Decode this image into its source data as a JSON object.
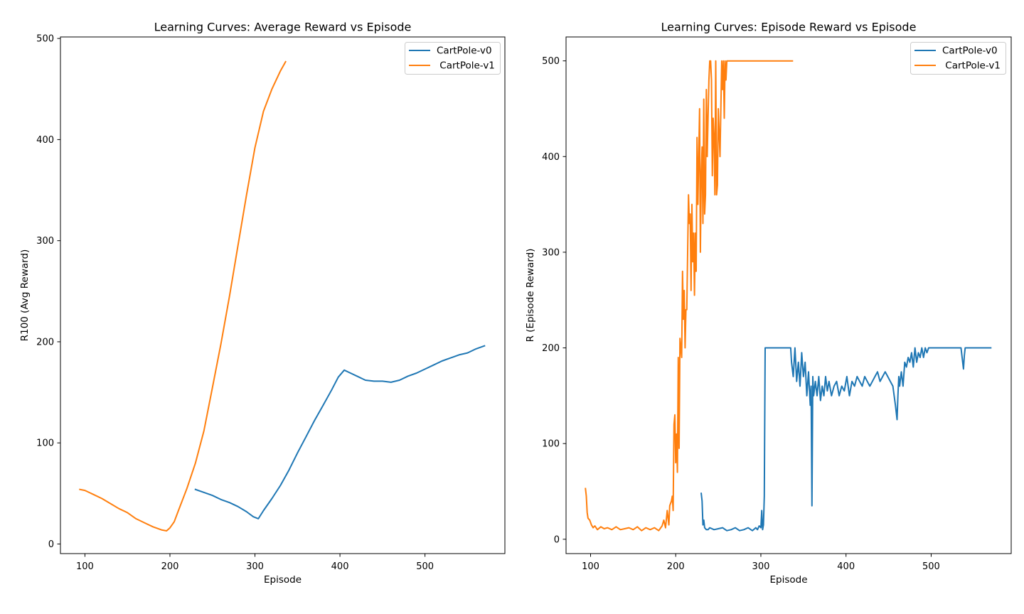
{
  "colors": {
    "v0": "#1f77b4",
    "v1": "#ff7f0e",
    "frame": "#000000",
    "legend_border": "#cccccc"
  },
  "chart_data": [
    {
      "type": "line",
      "title": "Learning Curves: Average Reward vs Episode",
      "xlabel": "Episode",
      "ylabel": "R100 (Avg Reward)",
      "xlim": [
        71.2,
        594
      ],
      "ylim": [
        -9.5,
        501.5
      ],
      "xticks": [
        "100",
        "200",
        "300",
        "400",
        "500"
      ],
      "yticks": [
        "0",
        "100",
        "200",
        "300",
        "400",
        "500"
      ],
      "grid": false,
      "legend": "upper right",
      "series": [
        {
          "name": "CartPole-v0",
          "color": "#1f77b4",
          "x": [
            230,
            240,
            250,
            260,
            270,
            280,
            290,
            298,
            304,
            310,
            320,
            330,
            340,
            350,
            360,
            370,
            380,
            390,
            398,
            405,
            410,
            420,
            430,
            440,
            450,
            460,
            470,
            480,
            490,
            500,
            510,
            520,
            530,
            540,
            550,
            560,
            570
          ],
          "y": [
            54,
            51,
            48,
            44,
            41,
            37,
            32,
            27,
            25,
            33,
            45,
            58,
            73,
            90,
            106,
            122,
            137,
            152,
            165,
            172,
            170,
            166,
            162,
            161,
            161,
            160,
            162,
            166,
            169,
            173,
            177,
            181,
            184,
            187,
            189,
            193,
            196
          ]
        },
        {
          "name": " CartPole-v1",
          "color": "#ff7f0e",
          "x": [
            94,
            100,
            110,
            120,
            130,
            140,
            150,
            160,
            170,
            180,
            190,
            196,
            200,
            205,
            210,
            220,
            230,
            240,
            250,
            260,
            270,
            280,
            290,
            300,
            310,
            320,
            330,
            336
          ],
          "y": [
            54,
            53,
            49,
            45,
            40,
            35,
            31,
            25,
            21,
            17,
            14,
            13,
            16,
            22,
            33,
            55,
            80,
            112,
            155,
            198,
            245,
            295,
            345,
            392,
            428,
            450,
            468,
            477
          ]
        }
      ]
    },
    {
      "type": "line",
      "title": "Learning Curves: Episode Reward vs Episode",
      "xlabel": "Episode",
      "ylabel": "R (Episode Reward)",
      "xlim": [
        71.2,
        594
      ],
      "ylim": [
        -15,
        525
      ],
      "xticks": [
        "100",
        "200",
        "300",
        "400",
        "500"
      ],
      "yticks": [
        "0",
        "100",
        "200",
        "300",
        "400",
        "500"
      ],
      "grid": false,
      "legend": "upper right",
      "series": [
        {
          "name": "CartPole-v0",
          "color": "#1f77b4",
          "x": [
            230,
            231,
            232,
            233,
            234,
            236,
            238,
            240,
            245,
            250,
            255,
            260,
            265,
            270,
            275,
            280,
            285,
            290,
            294,
            296,
            298,
            300,
            301,
            302,
            303,
            304,
            305,
            306,
            307,
            310,
            315,
            320,
            325,
            330,
            335,
            336,
            338,
            340,
            342,
            344,
            346,
            348,
            350,
            352,
            354,
            356,
            358,
            359,
            360,
            361,
            362,
            364,
            366,
            368,
            370,
            372,
            374,
            376,
            378,
            380,
            383,
            386,
            389,
            392,
            395,
            398,
            401,
            404,
            407,
            410,
            413,
            416,
            419,
            422,
            425,
            428,
            431,
            434,
            437,
            440,
            443,
            446,
            449,
            452,
            455,
            458,
            460,
            461,
            462,
            463,
            465,
            467,
            469,
            471,
            473,
            475,
            477,
            479,
            481,
            483,
            485,
            487,
            489,
            491,
            493,
            495,
            497,
            500,
            505,
            510,
            515,
            520,
            525,
            530,
            535,
            538,
            539,
            540,
            545,
            550,
            555,
            560,
            565,
            570
          ],
          "y": [
            48,
            40,
            15,
            20,
            12,
            10,
            10,
            12,
            10,
            11,
            12,
            9,
            10,
            12,
            9,
            10,
            12,
            9,
            12,
            10,
            14,
            12,
            30,
            10,
            15,
            45,
            200,
            200,
            200,
            200,
            200,
            200,
            200,
            200,
            200,
            185,
            170,
            200,
            165,
            185,
            160,
            195,
            170,
            185,
            150,
            175,
            140,
            160,
            35,
            170,
            150,
            165,
            150,
            170,
            145,
            160,
            150,
            170,
            155,
            165,
            150,
            160,
            165,
            150,
            160,
            155,
            170,
            150,
            165,
            160,
            170,
            165,
            160,
            170,
            165,
            160,
            165,
            170,
            175,
            165,
            170,
            175,
            170,
            165,
            160,
            140,
            125,
            150,
            170,
            160,
            175,
            160,
            185,
            180,
            190,
            185,
            195,
            180,
            200,
            185,
            195,
            190,
            200,
            190,
            200,
            195,
            200,
            200,
            200,
            200,
            200,
            200,
            200,
            200,
            200,
            178,
            192,
            200,
            200,
            200,
            200,
            200,
            200,
            200
          ]
        },
        {
          "name": " CartPole-v1",
          "color": "#ff7f0e",
          "x": [
            94,
            95,
            96,
            97,
            99,
            101,
            103,
            105,
            108,
            112,
            116,
            120,
            125,
            130,
            135,
            140,
            145,
            150,
            155,
            160,
            165,
            170,
            175,
            180,
            184,
            186,
            188,
            190,
            192,
            193,
            195,
            196,
            197,
            198,
            199,
            200,
            201,
            202,
            203,
            204,
            205,
            206,
            207,
            208,
            209,
            210,
            211,
            212,
            213,
            214,
            215,
            216,
            217,
            218,
            219,
            220,
            221,
            222,
            223,
            224,
            225,
            226,
            227,
            228,
            229,
            230,
            231,
            232,
            233,
            234,
            235,
            236,
            237,
            238,
            239,
            240,
            241,
            242,
            243,
            244,
            245,
            246,
            247,
            248,
            249,
            250,
            252,
            254,
            255,
            256,
            257,
            258,
            259,
            260,
            261,
            262,
            263,
            264,
            265,
            266,
            267,
            268,
            269,
            270,
            271,
            272,
            273,
            274,
            275,
            280,
            290,
            300,
            310,
            320,
            330,
            337
          ],
          "y": [
            53,
            45,
            28,
            22,
            20,
            15,
            12,
            14,
            10,
            13,
            11,
            12,
            10,
            13,
            10,
            11,
            12,
            10,
            13,
            9,
            12,
            10,
            12,
            9,
            14,
            20,
            12,
            30,
            15,
            35,
            40,
            45,
            30,
            120,
            130,
            80,
            110,
            70,
            190,
            95,
            210,
            200,
            190,
            280,
            230,
            260,
            200,
            240,
            240,
            300,
            360,
            330,
            340,
            260,
            350,
            290,
            320,
            255,
            320,
            280,
            420,
            350,
            400,
            450,
            300,
            380,
            410,
            330,
            460,
            340,
            360,
            470,
            400,
            440,
            480,
            500,
            500,
            480,
            380,
            440,
            420,
            360,
            500,
            360,
            370,
            450,
            400,
            500,
            470,
            500,
            440,
            500,
            480,
            500,
            500,
            500,
            500,
            500,
            500,
            500,
            500,
            500,
            500,
            500,
            500,
            500,
            500,
            500,
            500,
            500,
            500,
            500,
            500,
            500,
            500,
            500
          ]
        }
      ]
    }
  ]
}
